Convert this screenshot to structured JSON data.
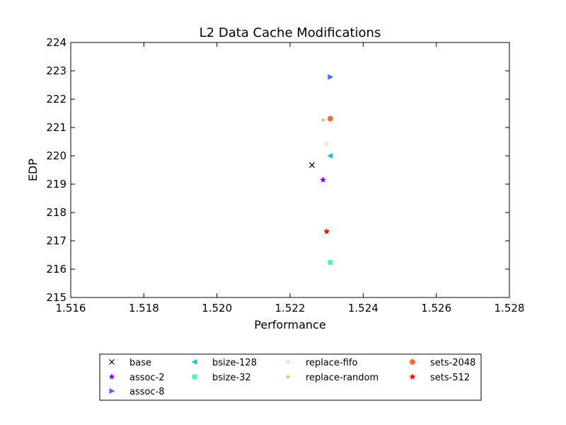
{
  "chart_data": {
    "type": "scatter",
    "title": "L2 Data Cache Modifications",
    "xlabel": "Performance",
    "ylabel": "EDP",
    "xlim": [
      1.516,
      1.528
    ],
    "ylim": [
      215,
      224
    ],
    "x_ticks": [
      "1.516",
      "1.518",
      "1.520",
      "1.522",
      "1.524",
      "1.526",
      "1.528"
    ],
    "y_ticks": [
      "215",
      "216",
      "217",
      "218",
      "219",
      "220",
      "221",
      "222",
      "223",
      "224"
    ],
    "grid": false,
    "legend_position": "bottom",
    "series": [
      {
        "name": "base",
        "marker": "x",
        "color": "#000000",
        "x": 1.5226,
        "y": 219.67
      },
      {
        "name": "assoc-2",
        "marker": "star",
        "color": "#7f00ff",
        "x": 1.5229,
        "y": 219.15
      },
      {
        "name": "assoc-8",
        "marker": "triangle-right",
        "color": "#3f6ef5",
        "x": 1.5231,
        "y": 222.78
      },
      {
        "name": "bsize-128",
        "marker": "triangle-left",
        "color": "#15c3e0",
        "x": 1.5231,
        "y": 220.0
      },
      {
        "name": "bsize-32",
        "marker": "square",
        "color": "#52f5b8",
        "x": 1.5231,
        "y": 216.24
      },
      {
        "name": "replace-fifo",
        "marker": "plus",
        "color": "#91ff80",
        "x": 1.523,
        "y": 220.42
      },
      {
        "name": "replace-random",
        "marker": "dot",
        "color": "#f5b85a",
        "x": 1.5229,
        "y": 221.26
      },
      {
        "name": "sets-2048",
        "marker": "circle",
        "color": "#ff6a3a",
        "x": 1.5231,
        "y": 221.31
      },
      {
        "name": "sets-512",
        "marker": "star",
        "color": "#ff0000",
        "x": 1.523,
        "y": 217.33
      }
    ]
  }
}
